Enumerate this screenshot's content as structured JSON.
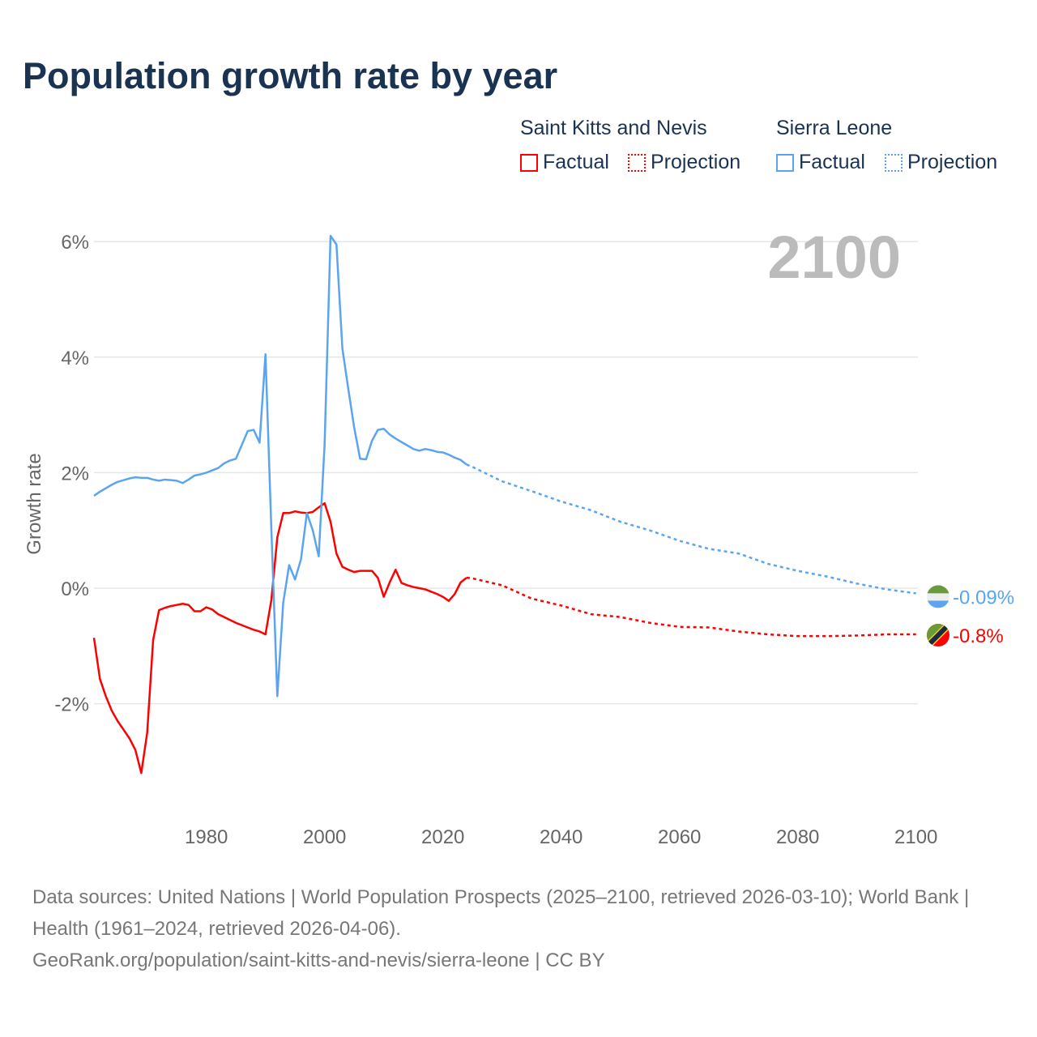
{
  "title": "Population growth rate by year",
  "legend": {
    "groups": [
      {
        "name": "Saint Kitts and Nevis",
        "color": "#ff0000",
        "factual": "Factual",
        "projection": "Projection"
      },
      {
        "name": "Sierra Leone",
        "color": "#5ba4ef",
        "factual": "Factual",
        "projection": "Projection"
      }
    ]
  },
  "year_label": "2100",
  "footer": {
    "sources": "Data sources: United Nations | World Population Prospects (2025–2100, retrieved 2026-03-10); World Bank | Health (1961–2024, retrieved 2026-04-06).",
    "link": "GeoRank.org/population/saint-kitts-and-nevis/sierra-leone | CC BY"
  },
  "chart_data": {
    "type": "line",
    "title": "Population growth rate by year",
    "xlabel": "",
    "ylabel": "Growth rate",
    "xlim": [
      1961,
      2100
    ],
    "ylim": [
      -3.9,
      6.6
    ],
    "x_ticks": [
      1980,
      2000,
      2020,
      2040,
      2060,
      2080,
      2100
    ],
    "y_ticks": [
      {
        "v": -2,
        "label": "-2%"
      },
      {
        "v": 0,
        "label": "0%"
      },
      {
        "v": 2,
        "label": "2%"
      },
      {
        "v": 4,
        "label": "4%"
      },
      {
        "v": 6,
        "label": "6%"
      }
    ],
    "grid": true,
    "series": [
      {
        "name": "Saint Kitts and Nevis",
        "color": "#ff0000",
        "end_label": "-0.8%",
        "factual": {
          "x_start": 1961,
          "values": [
            -0.86,
            -1.57,
            -1.87,
            -2.12,
            -2.3,
            -2.45,
            -2.6,
            -2.8,
            -3.2,
            -2.5,
            -0.9,
            -0.38,
            -0.34,
            -0.31,
            -0.29,
            -0.27,
            -0.29,
            -0.4,
            -0.4,
            -0.33,
            -0.37,
            -0.45,
            -0.5,
            -0.55,
            -0.6,
            -0.64,
            -0.68,
            -0.72,
            -0.75,
            -0.8,
            -0.2,
            0.88,
            1.3,
            1.3,
            1.33,
            1.31,
            1.3,
            1.32,
            1.4,
            1.47,
            1.15,
            0.6,
            0.37,
            0.32,
            0.28,
            0.3,
            0.3,
            0.3,
            0.18,
            -0.15,
            0.1,
            0.32,
            0.09,
            0.05,
            0.02,
            0.0,
            -0.02,
            -0.06,
            -0.1,
            -0.15,
            -0.22,
            -0.1,
            0.1,
            0.18
          ]
        },
        "projection": {
          "x": [
            2024,
            2025,
            2030,
            2035,
            2040,
            2045,
            2050,
            2055,
            2060,
            2065,
            2070,
            2075,
            2080,
            2085,
            2090,
            2095,
            2100
          ],
          "values": [
            0.18,
            0.17,
            0.05,
            -0.18,
            -0.3,
            -0.45,
            -0.5,
            -0.6,
            -0.67,
            -0.68,
            -0.75,
            -0.8,
            -0.83,
            -0.83,
            -0.82,
            -0.8,
            -0.8
          ]
        }
      },
      {
        "name": "Sierra Leone",
        "color": "#5ba4ef",
        "end_label": "-0.09%",
        "factual": {
          "x_start": 1961,
          "values": [
            1.6,
            1.67,
            1.73,
            1.79,
            1.84,
            1.87,
            1.9,
            1.92,
            1.91,
            1.91,
            1.88,
            1.86,
            1.88,
            1.87,
            1.86,
            1.82,
            1.88,
            1.95,
            1.97,
            2.0,
            2.04,
            2.08,
            2.16,
            2.21,
            2.24,
            2.48,
            2.72,
            2.74,
            2.52,
            4.05,
            1.0,
            -1.87,
            -0.25,
            0.4,
            0.15,
            0.5,
            1.3,
            1.0,
            0.55,
            2.5,
            6.1,
            5.95,
            4.15,
            3.45,
            2.78,
            2.24,
            2.23,
            2.55,
            2.74,
            2.76,
            2.66,
            2.59,
            2.53,
            2.47,
            2.41,
            2.38,
            2.41,
            2.39,
            2.36,
            2.35,
            2.31,
            2.26,
            2.22,
            2.14
          ]
        },
        "projection": {
          "x": [
            2024,
            2025,
            2030,
            2035,
            2040,
            2045,
            2050,
            2055,
            2060,
            2065,
            2070,
            2075,
            2080,
            2085,
            2090,
            2095,
            2100
          ],
          "values": [
            2.14,
            2.1,
            1.85,
            1.68,
            1.5,
            1.35,
            1.15,
            1.0,
            0.82,
            0.68,
            0.6,
            0.42,
            0.3,
            0.2,
            0.08,
            -0.02,
            -0.09
          ]
        }
      }
    ]
  }
}
